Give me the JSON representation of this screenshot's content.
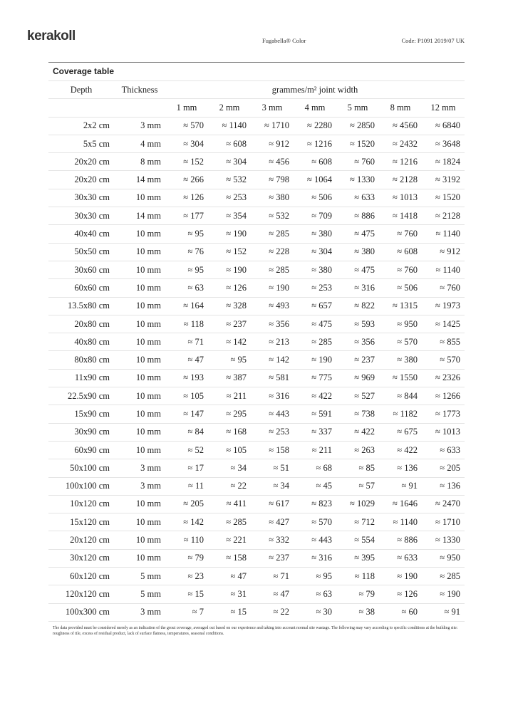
{
  "header": {
    "logo": "kerakoll",
    "product": "Fugabella® Color",
    "code": "Code: P1091 2019/07 UK"
  },
  "table": {
    "title": "Coverage table",
    "col_depth": "Depth",
    "col_thickness": "Thickness",
    "col_group": "grammes/m² joint width",
    "widths": [
      "1 mm",
      "2 mm",
      "3 mm",
      "4 mm",
      "5 mm",
      "8 mm",
      "12 mm"
    ],
    "rows": [
      [
        "2x2 cm",
        "3 mm",
        "≈ 570",
        "≈ 1140",
        "≈ 1710",
        "≈ 2280",
        "≈ 2850",
        "≈ 4560",
        "≈ 6840"
      ],
      [
        "5x5 cm",
        "4 mm",
        "≈ 304",
        "≈ 608",
        "≈ 912",
        "≈ 1216",
        "≈ 1520",
        "≈ 2432",
        "≈ 3648"
      ],
      [
        "20x20 cm",
        "8 mm",
        "≈ 152",
        "≈ 304",
        "≈ 456",
        "≈ 608",
        "≈ 760",
        "≈ 1216",
        "≈ 1824"
      ],
      [
        "20x20 cm",
        "14 mm",
        "≈ 266",
        "≈ 532",
        "≈ 798",
        "≈ 1064",
        "≈ 1330",
        "≈ 2128",
        "≈ 3192"
      ],
      [
        "30x30 cm",
        "10 mm",
        "≈ 126",
        "≈ 253",
        "≈ 380",
        "≈ 506",
        "≈ 633",
        "≈ 1013",
        "≈ 1520"
      ],
      [
        "30x30 cm",
        "14 mm",
        "≈ 177",
        "≈ 354",
        "≈ 532",
        "≈ 709",
        "≈ 886",
        "≈ 1418",
        "≈ 2128"
      ],
      [
        "40x40 cm",
        "10 mm",
        "≈ 95",
        "≈ 190",
        "≈ 285",
        "≈ 380",
        "≈ 475",
        "≈ 760",
        "≈ 1140"
      ],
      [
        "50x50 cm",
        "10 mm",
        "≈ 76",
        "≈ 152",
        "≈ 228",
        "≈ 304",
        "≈ 380",
        "≈ 608",
        "≈ 912"
      ],
      [
        "30x60 cm",
        "10 mm",
        "≈ 95",
        "≈ 190",
        "≈ 285",
        "≈ 380",
        "≈ 475",
        "≈ 760",
        "≈ 1140"
      ],
      [
        "60x60 cm",
        "10 mm",
        "≈ 63",
        "≈ 126",
        "≈ 190",
        "≈ 253",
        "≈ 316",
        "≈ 506",
        "≈ 760"
      ],
      [
        "13.5x80 cm",
        "10 mm",
        "≈ 164",
        "≈ 328",
        "≈ 493",
        "≈ 657",
        "≈ 822",
        "≈ 1315",
        "≈ 1973"
      ],
      [
        "20x80 cm",
        "10 mm",
        "≈ 118",
        "≈ 237",
        "≈ 356",
        "≈ 475",
        "≈ 593",
        "≈ 950",
        "≈ 1425"
      ],
      [
        "40x80 cm",
        "10 mm",
        "≈ 71",
        "≈ 142",
        "≈ 213",
        "≈ 285",
        "≈ 356",
        "≈ 570",
        "≈ 855"
      ],
      [
        "80x80 cm",
        "10 mm",
        "≈ 47",
        "≈ 95",
        "≈ 142",
        "≈ 190",
        "≈ 237",
        "≈ 380",
        "≈ 570"
      ],
      [
        "11x90 cm",
        "10 mm",
        "≈ 193",
        "≈ 387",
        "≈ 581",
        "≈ 775",
        "≈ 969",
        "≈ 1550",
        "≈ 2326"
      ],
      [
        "22.5x90 cm",
        "10 mm",
        "≈ 105",
        "≈ 211",
        "≈ 316",
        "≈ 422",
        "≈ 527",
        "≈ 844",
        "≈ 1266"
      ],
      [
        "15x90 cm",
        "10 mm",
        "≈ 147",
        "≈ 295",
        "≈ 443",
        "≈ 591",
        "≈ 738",
        "≈ 1182",
        "≈ 1773"
      ],
      [
        "30x90 cm",
        "10 mm",
        "≈ 84",
        "≈ 168",
        "≈ 253",
        "≈ 337",
        "≈ 422",
        "≈ 675",
        "≈ 1013"
      ],
      [
        "60x90 cm",
        "10 mm",
        "≈ 52",
        "≈ 105",
        "≈ 158",
        "≈ 211",
        "≈ 263",
        "≈ 422",
        "≈ 633"
      ],
      [
        "50x100 cm",
        "3 mm",
        "≈ 17",
        "≈ 34",
        "≈ 51",
        "≈ 68",
        "≈ 85",
        "≈ 136",
        "≈ 205"
      ],
      [
        "100x100 cm",
        "3 mm",
        "≈ 11",
        "≈ 22",
        "≈ 34",
        "≈ 45",
        "≈ 57",
        "≈ 91",
        "≈ 136"
      ],
      [
        "10x120 cm",
        "10 mm",
        "≈ 205",
        "≈ 411",
        "≈ 617",
        "≈ 823",
        "≈ 1029",
        "≈ 1646",
        "≈ 2470"
      ],
      [
        "15x120 cm",
        "10 mm",
        "≈ 142",
        "≈ 285",
        "≈ 427",
        "≈ 570",
        "≈ 712",
        "≈ 1140",
        "≈ 1710"
      ],
      [
        "20x120 cm",
        "10 mm",
        "≈ 110",
        "≈ 221",
        "≈ 332",
        "≈ 443",
        "≈ 554",
        "≈ 886",
        "≈ 1330"
      ],
      [
        "30x120 cm",
        "10 mm",
        "≈ 79",
        "≈ 158",
        "≈ 237",
        "≈ 316",
        "≈ 395",
        "≈ 633",
        "≈ 950"
      ],
      [
        "60x120 cm",
        "5 mm",
        "≈ 23",
        "≈ 47",
        "≈ 71",
        "≈ 95",
        "≈ 118",
        "≈ 190",
        "≈ 285"
      ],
      [
        "120x120 cm",
        "5 mm",
        "≈ 15",
        "≈ 31",
        "≈ 47",
        "≈ 63",
        "≈ 79",
        "≈ 126",
        "≈ 190"
      ],
      [
        "100x300 cm",
        "3 mm",
        "≈ 7",
        "≈ 15",
        "≈ 22",
        "≈ 30",
        "≈ 38",
        "≈ 60",
        "≈ 91"
      ]
    ]
  },
  "footnote": "The data provided must be considered merely as an indication of the grout coverage, averaged out based on our experience and taking into account normal site wastage. The following may vary according to specific conditions at the building site: roughness of tile, excess of residual product, lack of surface flatness, temperatures, seasonal conditions."
}
